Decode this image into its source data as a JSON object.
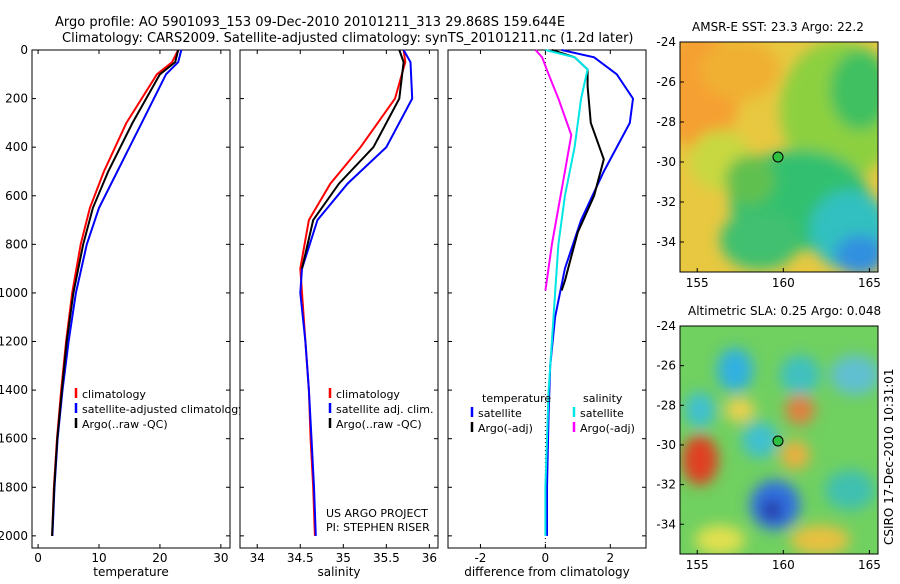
{
  "header": {
    "line1": "Argo profile: AO 5901093_153 09-Dec-2010 20101211_313 29.868S 159.644E",
    "line2": "Climatology: CARS2009. Satellite-adjusted climatology: synTS_20101211.nc (1.2d later)"
  },
  "credit": {
    "project": "US ARGO PROJECT",
    "pi": "PI: STEPHEN RISER",
    "csiro": "CSIRO 17-Dec-2010 10:31:01"
  },
  "colors": {
    "climatology": "#ff0000",
    "satellite": "#0000ff",
    "argo": "#000000",
    "cyan": "#00e5e5",
    "magenta": "#ff00ff"
  },
  "chart_data": [
    {
      "type": "line",
      "xlabel": "temperature",
      "ylabel": "",
      "xlim": [
        -1,
        31.5
      ],
      "ylim": [
        0,
        2050
      ],
      "y_inverted": true,
      "xticks": [
        "0",
        "10",
        "20",
        "30"
      ],
      "yticks": [
        "0",
        "200",
        "400",
        "600",
        "800",
        "1000",
        "1200",
        "1400",
        "1600",
        "1800",
        "2000"
      ],
      "legend": [
        "climatology",
        "satellite-adjusted climatology",
        "Argo(..raw -QC)"
      ],
      "series": [
        {
          "name": "climatology",
          "color": "#ff0000",
          "x": [
            23,
            22,
            19.5,
            14.5,
            10.8,
            8.5,
            7,
            5.6,
            4.6,
            3.8,
            3.1,
            2.6,
            2.3
          ],
          "y": [
            0,
            50,
            100,
            300,
            500,
            650,
            800,
            1000,
            1200,
            1400,
            1600,
            1800,
            2000
          ]
        },
        {
          "name": "satellite-adjusted climatology",
          "color": "#0000ff",
          "x": [
            23.5,
            23,
            21,
            17,
            13,
            10,
            8,
            6.2,
            5,
            4,
            3.2,
            2.7,
            2.35
          ],
          "y": [
            0,
            50,
            100,
            300,
            500,
            650,
            800,
            1000,
            1200,
            1400,
            1600,
            1800,
            2000
          ]
        },
        {
          "name": "Argo(..raw -QC)",
          "color": "#000000",
          "x": [
            23,
            22.5,
            20,
            15.5,
            11.5,
            9,
            7.4,
            5.8,
            4.7,
            3.9,
            3.15,
            2.65,
            2.3
          ],
          "y": [
            0,
            50,
            100,
            300,
            500,
            650,
            800,
            1000,
            1200,
            1400,
            1600,
            1800,
            2000
          ]
        }
      ]
    },
    {
      "type": "line",
      "xlabel": "salinity",
      "xlim": [
        33.8,
        36.1
      ],
      "ylim": [
        0,
        2050
      ],
      "y_inverted": true,
      "xticks": [
        "34",
        "34.5",
        "35",
        "35.5",
        "36"
      ],
      "legend": [
        "climatology",
        "satellite adj. clim.",
        "Argo(..raw -QC)"
      ],
      "series": [
        {
          "name": "climatology",
          "color": "#ff0000",
          "x": [
            35.7,
            35.72,
            35.6,
            35.2,
            34.85,
            34.6,
            34.5,
            34.52,
            34.56,
            34.6,
            34.62,
            34.65,
            34.67
          ],
          "y": [
            0,
            50,
            200,
            400,
            550,
            700,
            900,
            1000,
            1200,
            1400,
            1600,
            1800,
            2000
          ]
        },
        {
          "name": "satellite adj. clim.",
          "color": "#0000ff",
          "x": [
            35.7,
            35.78,
            35.8,
            35.5,
            35.05,
            34.7,
            34.52,
            34.5,
            34.56,
            34.6,
            34.63,
            34.66,
            34.68
          ],
          "y": [
            0,
            50,
            200,
            400,
            550,
            700,
            900,
            1000,
            1200,
            1400,
            1600,
            1800,
            2000
          ]
        },
        {
          "name": "Argo(..raw -QC)",
          "color": "#000000",
          "x": [
            35.65,
            35.7,
            35.65,
            35.35,
            34.95,
            34.65,
            34.52
          ],
          "y": [
            0,
            50,
            200,
            400,
            550,
            700,
            900
          ]
        }
      ]
    },
    {
      "type": "line",
      "xlabel": "difference from climatology",
      "xlim": [
        -3,
        3.1
      ],
      "ylim": [
        0,
        2050
      ],
      "y_inverted": true,
      "xticks": [
        "-2",
        "0",
        "2"
      ],
      "legend": [
        "temperature",
        "satellite",
        "Argo(-adj)",
        "salinity",
        "satellite",
        "Argo(-adj)"
      ],
      "series": [
        {
          "name": "temperature satellite",
          "color": "#0000ff",
          "x": [
            0.5,
            1.5,
            2.2,
            2.7,
            2.6,
            1.8,
            1.1,
            0.6,
            0.3,
            0.15,
            0.1,
            0.05,
            0.05
          ],
          "y": [
            0,
            30,
            100,
            200,
            300,
            500,
            700,
            900,
            1100,
            1300,
            1500,
            1800,
            2000
          ]
        },
        {
          "name": "temperature Argo(-adj)",
          "color": "#000000",
          "x": [
            0.2,
            0.9,
            1.3,
            1.3,
            1.4,
            1.8,
            1.5,
            1.0,
            0.8,
            0.6,
            0.5
          ],
          "y": [
            0,
            30,
            80,
            150,
            300,
            450,
            600,
            750,
            850,
            950,
            990
          ]
        },
        {
          "name": "salinity satellite",
          "color": "#00e5e5",
          "x": [
            0,
            0.9,
            1.3,
            1.1,
            0.9,
            0.6,
            0.4,
            0.3,
            0.2,
            0.1,
            0.05,
            0,
            0
          ],
          "y": [
            0,
            30,
            80,
            200,
            400,
            600,
            800,
            1000,
            1200,
            1400,
            1600,
            1800,
            2000
          ]
        },
        {
          "name": "salinity Argo(-adj)",
          "color": "#ff00ff",
          "x": [
            -0.3,
            -0.1,
            0.1,
            0.4,
            0.8,
            0.6,
            0.4,
            0.2,
            0
          ],
          "y": [
            0,
            30,
            100,
            200,
            350,
            500,
            650,
            800,
            990
          ]
        }
      ]
    },
    {
      "type": "heatmap",
      "title": "AMSR-E SST: 23.3  Argo: 22.2",
      "xlim": [
        154,
        165.5
      ],
      "ylim": [
        -35.5,
        -24
      ],
      "xticks": [
        "155",
        "160",
        "165"
      ],
      "yticks": [
        "-24",
        "-26",
        "-28",
        "-30",
        "-32",
        "-34"
      ],
      "marker": {
        "lon": 159.6,
        "lat": -29.9
      }
    },
    {
      "type": "heatmap",
      "title": "Altimetric SLA: 0.25  Argo: 0.048",
      "xlim": [
        154,
        165.5
      ],
      "ylim": [
        -35.5,
        -24
      ],
      "xticks": [
        "155",
        "160",
        "165"
      ],
      "yticks": [
        "-24",
        "-26",
        "-28",
        "-30",
        "-32",
        "-34"
      ],
      "marker": {
        "lon": 159.6,
        "lat": -29.9
      }
    }
  ]
}
